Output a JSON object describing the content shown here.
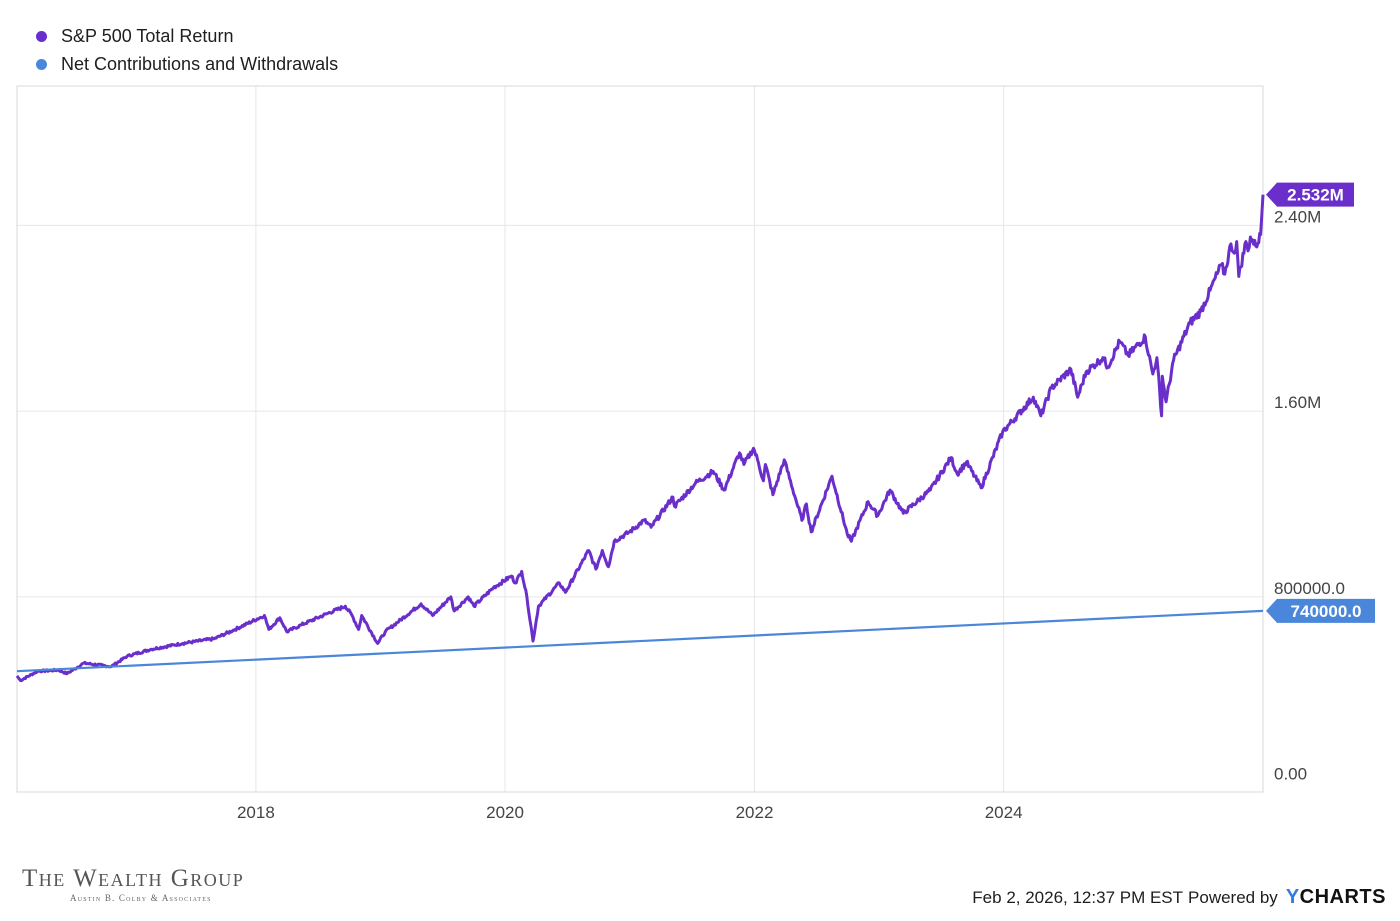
{
  "chart_data": {
    "type": "line",
    "xlim": [
      "2016-02-01",
      "2026-01-30"
    ],
    "ylim": [
      -40000,
      3000000
    ],
    "x_ticks": [
      "2018",
      "2020",
      "2022",
      "2024"
    ],
    "y_ticks": [
      {
        "value": 0,
        "label": "0.00"
      },
      {
        "value": 800000,
        "label": "800000.0"
      },
      {
        "value": 1600000,
        "label": "1.60M"
      },
      {
        "value": 2400000,
        "label": "2.40M"
      }
    ],
    "grid": true,
    "legend_position": "top-left",
    "series": [
      {
        "name": "S&P 500 Total Return",
        "color": "#6a2ecb",
        "last_value_label": "2.532M",
        "points": [
          [
            "2016-02-01",
            460000
          ],
          [
            "2016-02-11",
            440000
          ],
          [
            "2016-04-01",
            480000
          ],
          [
            "2016-06-01",
            485000
          ],
          [
            "2016-06-27",
            470000
          ],
          [
            "2016-08-15",
            515000
          ],
          [
            "2016-11-03",
            500000
          ],
          [
            "2016-12-20",
            545000
          ],
          [
            "2017-03-01",
            575000
          ],
          [
            "2017-06-01",
            600000
          ],
          [
            "2017-09-01",
            620000
          ],
          [
            "2017-11-01",
            660000
          ],
          [
            "2018-01-26",
            720000
          ],
          [
            "2018-02-08",
            660000
          ],
          [
            "2018-03-12",
            710000
          ],
          [
            "2018-04-02",
            650000
          ],
          [
            "2018-05-15",
            680000
          ],
          [
            "2018-08-01",
            730000
          ],
          [
            "2018-09-20",
            760000
          ],
          [
            "2018-10-10",
            720000
          ],
          [
            "2018-10-29",
            660000
          ],
          [
            "2018-11-07",
            720000
          ],
          [
            "2018-12-24",
            600000
          ],
          [
            "2019-01-15",
            650000
          ],
          [
            "2019-04-30",
            770000
          ],
          [
            "2019-06-03",
            720000
          ],
          [
            "2019-07-26",
            800000
          ],
          [
            "2019-08-05",
            740000
          ],
          [
            "2019-09-15",
            800000
          ],
          [
            "2019-10-02",
            760000
          ],
          [
            "2019-11-28",
            840000
          ],
          [
            "2020-01-20",
            890000
          ],
          [
            "2020-01-31",
            860000
          ],
          [
            "2020-02-19",
            910000
          ],
          [
            "2020-03-05",
            800000
          ],
          [
            "2020-03-23",
            610000
          ],
          [
            "2020-04-08",
            760000
          ],
          [
            "2020-06-08",
            860000
          ],
          [
            "2020-06-26",
            820000
          ],
          [
            "2020-09-02",
            1000000
          ],
          [
            "2020-09-23",
            920000
          ],
          [
            "2020-10-12",
            1000000
          ],
          [
            "2020-10-30",
            930000
          ],
          [
            "2020-11-16",
            1040000
          ],
          [
            "2020-12-31",
            1080000
          ],
          [
            "2021-02-12",
            1130000
          ],
          [
            "2021-03-04",
            1100000
          ],
          [
            "2021-05-07",
            1230000
          ],
          [
            "2021-05-12",
            1190000
          ],
          [
            "2021-07-12",
            1290000
          ],
          [
            "2021-09-02",
            1340000
          ],
          [
            "2021-10-04",
            1260000
          ],
          [
            "2021-11-18",
            1420000
          ],
          [
            "2021-12-01",
            1370000
          ],
          [
            "2021-12-29",
            1440000
          ],
          [
            "2022-01-10",
            1390000
          ],
          [
            "2022-01-27",
            1300000
          ],
          [
            "2022-02-02",
            1370000
          ],
          [
            "2022-02-24",
            1240000
          ],
          [
            "2022-03-29",
            1390000
          ],
          [
            "2022-05-02",
            1220000
          ],
          [
            "2022-05-20",
            1130000
          ],
          [
            "2022-06-02",
            1200000
          ],
          [
            "2022-06-16",
            1080000
          ],
          [
            "2022-08-16",
            1320000
          ],
          [
            "2022-09-30",
            1070000
          ],
          [
            "2022-10-12",
            1040000
          ],
          [
            "2022-11-30",
            1210000
          ],
          [
            "2022-12-28",
            1150000
          ],
          [
            "2023-02-02",
            1260000
          ],
          [
            "2023-03-13",
            1160000
          ],
          [
            "2023-05-31",
            1260000
          ],
          [
            "2023-07-31",
            1400000
          ],
          [
            "2023-08-18",
            1330000
          ],
          [
            "2023-09-14",
            1380000
          ],
          [
            "2023-10-27",
            1270000
          ],
          [
            "2023-12-29",
            1510000
          ],
          [
            "2024-03-28",
            1660000
          ],
          [
            "2024-04-19",
            1580000
          ],
          [
            "2024-05-20",
            1700000
          ],
          [
            "2024-07-16",
            1780000
          ],
          [
            "2024-08-05",
            1660000
          ],
          [
            "2024-08-30",
            1770000
          ],
          [
            "2024-10-18",
            1830000
          ],
          [
            "2024-11-01",
            1790000
          ],
          [
            "2024-12-06",
            1900000
          ],
          [
            "2024-12-31",
            1840000
          ],
          [
            "2025-02-19",
            1920000
          ],
          [
            "2025-03-13",
            1760000
          ],
          [
            "2025-03-25",
            1830000
          ],
          [
            "2025-04-08",
            1580000
          ],
          [
            "2025-04-10",
            1750000
          ],
          [
            "2025-04-21",
            1640000
          ],
          [
            "2025-05-13",
            1820000
          ],
          [
            "2025-06-30",
            1980000
          ],
          [
            "2025-08-01",
            2030000
          ],
          [
            "2025-08-28",
            2120000
          ],
          [
            "2025-09-30",
            2230000
          ],
          [
            "2025-10-10",
            2190000
          ],
          [
            "2025-10-28",
            2320000
          ],
          [
            "2025-11-07",
            2280000
          ],
          [
            "2025-11-14",
            2330000
          ],
          [
            "2025-11-20",
            2180000
          ],
          [
            "2025-12-11",
            2330000
          ],
          [
            "2025-12-17",
            2290000
          ],
          [
            "2025-12-24",
            2350000
          ],
          [
            "2026-01-09",
            2310000
          ],
          [
            "2026-01-23",
            2360000
          ],
          [
            "2026-01-30",
            2532000
          ]
        ]
      },
      {
        "name": "Net Contributions and Withdrawals",
        "color": "#4a86d9",
        "last_value_label": "740000.0",
        "points": [
          [
            "2016-02-01",
            480000
          ],
          [
            "2026-01-30",
            740000
          ]
        ]
      }
    ]
  },
  "footer": {
    "logo_title": "The Wealth Group",
    "logo_subtitle": "Austin B. Colby & Associates",
    "timestamp": "Feb 2, 2026, 12:37 PM EST",
    "powered_by": "Powered by",
    "brand_y": "Y",
    "brand_rest": "CHARTS"
  }
}
